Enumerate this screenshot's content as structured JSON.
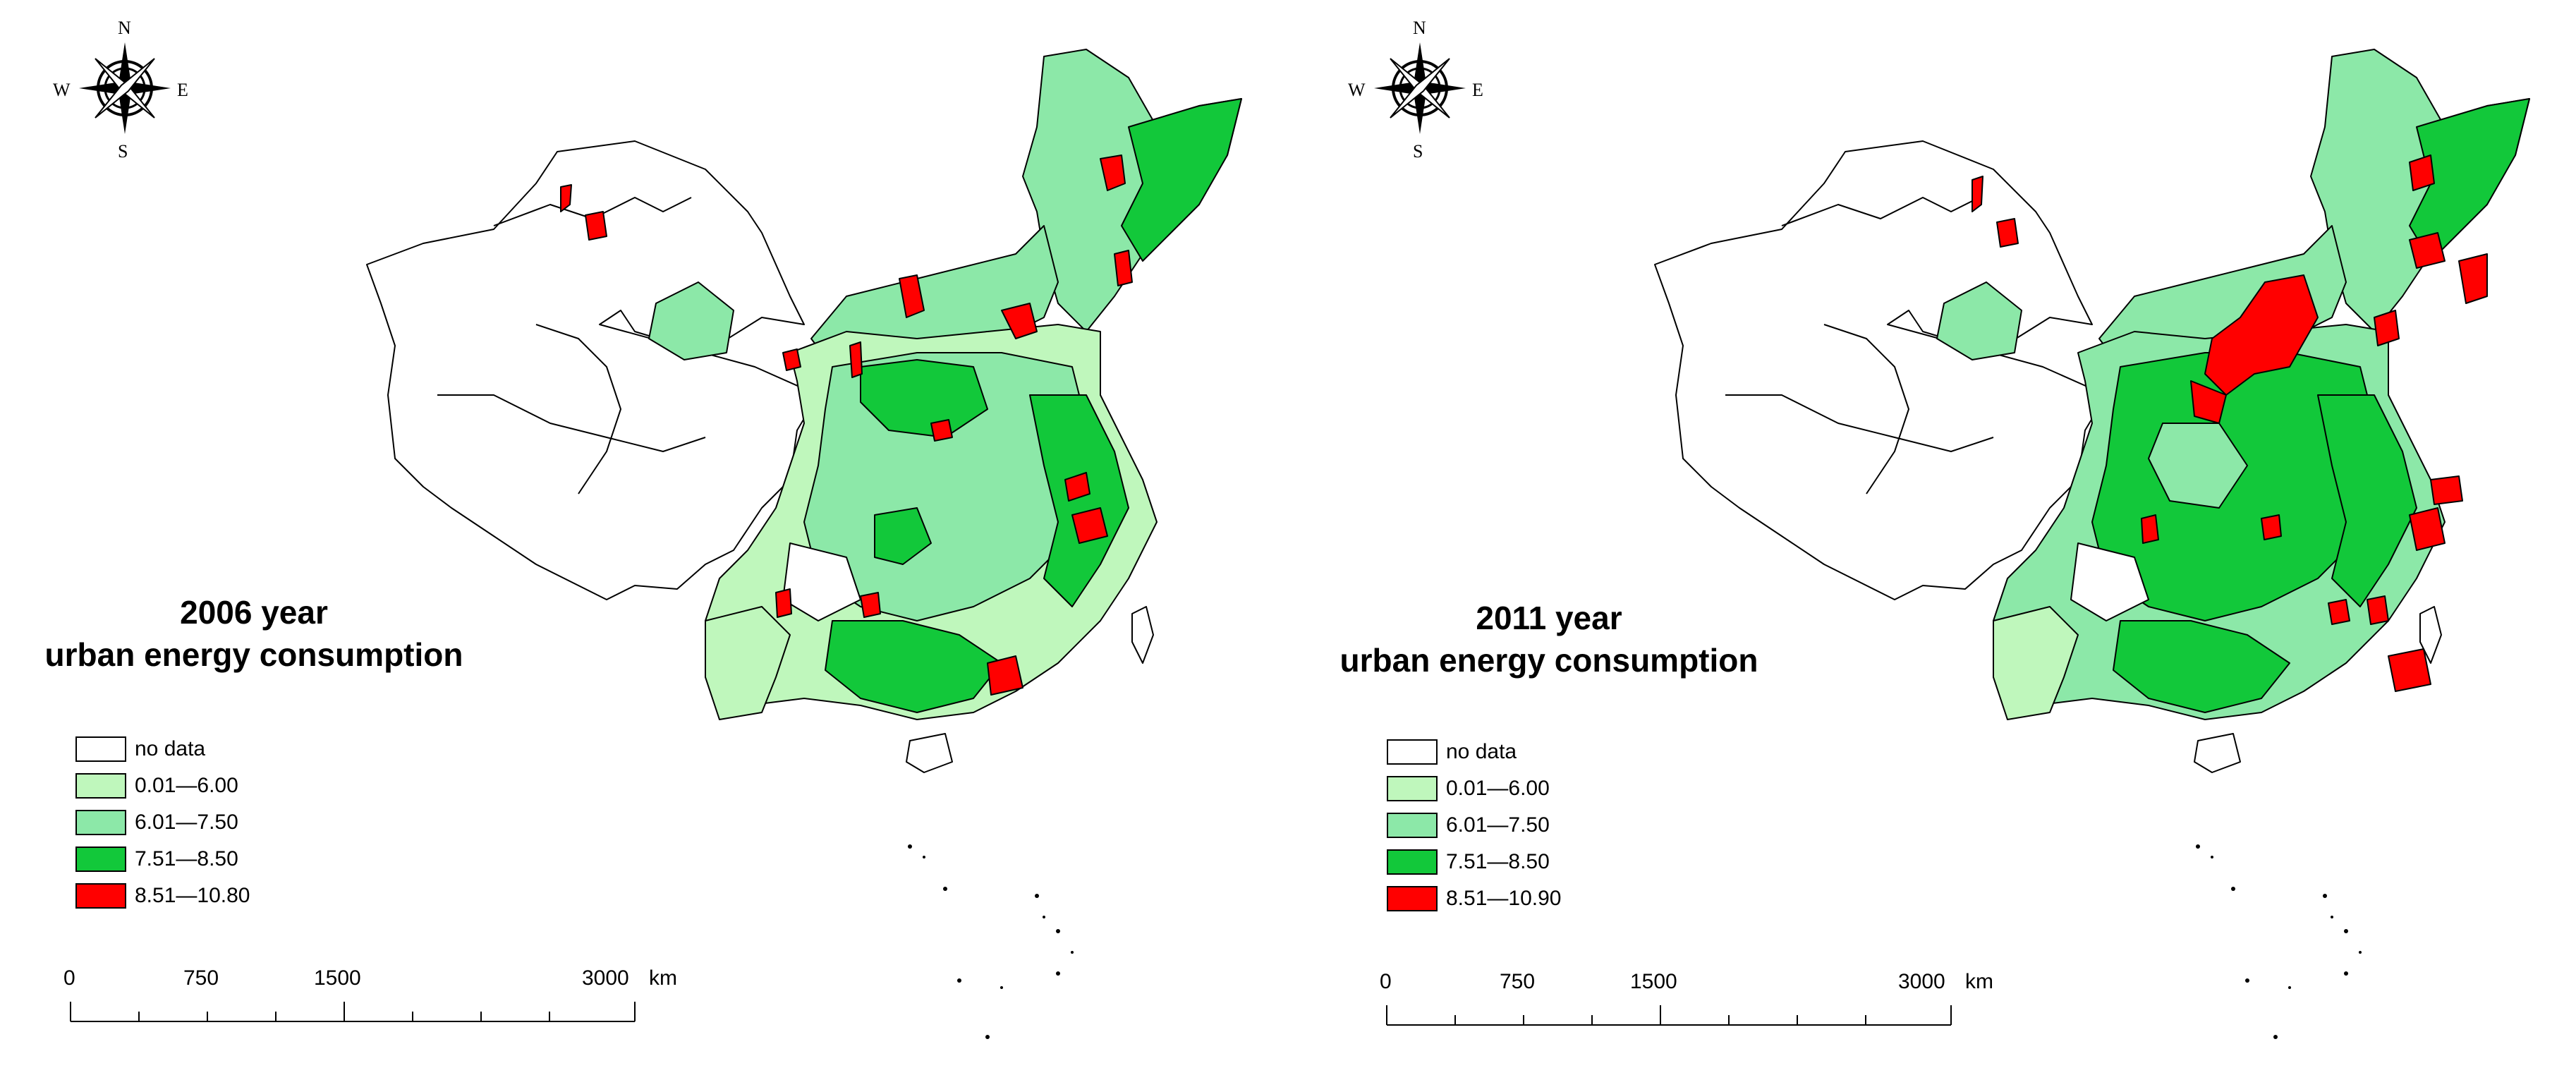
{
  "colors": {
    "no_data": "#ffffff",
    "class_1": "#bff7bc",
    "class_2": "#8ce8a8",
    "class_3": "#12c83a",
    "class_4": "#ff0000",
    "outline": "#000000"
  },
  "compass": {
    "north": "N",
    "south": "S",
    "east": "E",
    "west": "W"
  },
  "maps": [
    {
      "year_title": "2006 year",
      "subtitle": "urban energy consumption",
      "legend": [
        {
          "label": "no data",
          "color": "#ffffff"
        },
        {
          "label": "0.01—6.00",
          "color": "#bff7bc"
        },
        {
          "label": "6.01—7.50",
          "color": "#8ce8a8"
        },
        {
          "label": "7.51—8.50",
          "color": "#12c83a"
        },
        {
          "label": "8.51—10.80",
          "color": "#ff0000"
        }
      ]
    },
    {
      "year_title": "2011 year",
      "subtitle": "urban energy consumption",
      "legend": [
        {
          "label": "no data",
          "color": "#ffffff"
        },
        {
          "label": "0.01—6.00",
          "color": "#bff7bc"
        },
        {
          "label": "6.01—7.50",
          "color": "#8ce8a8"
        },
        {
          "label": "7.51—8.50",
          "color": "#12c83a"
        },
        {
          "label": "8.51—10.90",
          "color": "#ff0000"
        }
      ]
    }
  ],
  "scale_bar": {
    "ticks": [
      "0",
      "750",
      "1500",
      "3000"
    ],
    "unit": "km"
  }
}
